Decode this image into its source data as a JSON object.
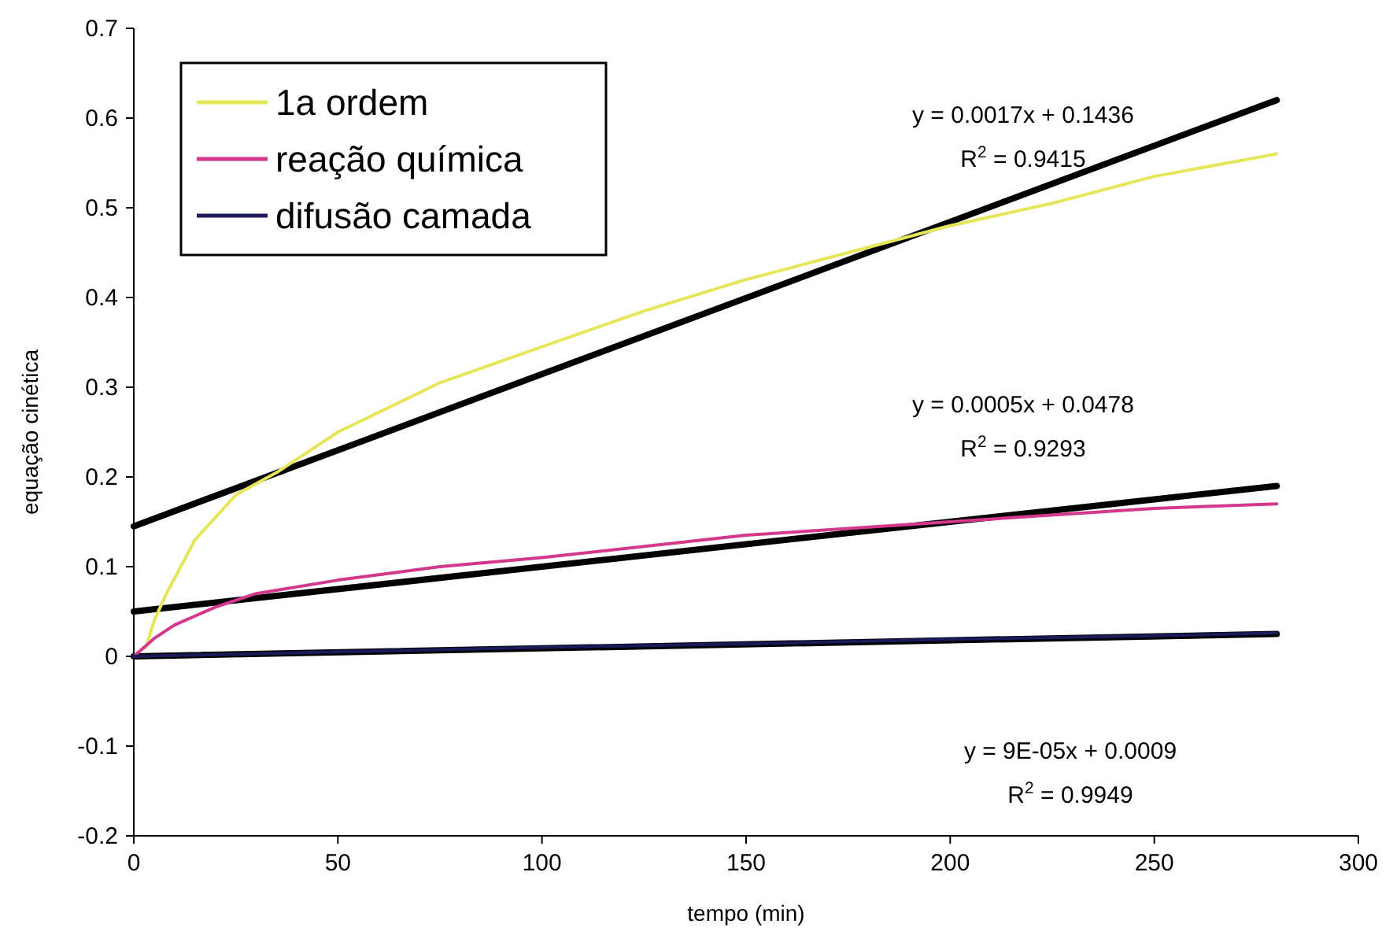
{
  "chart_data": {
    "type": "line",
    "xlabel": "tempo (min)",
    "ylabel": "equação cinética",
    "xlim": [
      0,
      300
    ],
    "ylim": [
      -0.2,
      0.7
    ],
    "xticks": [
      0,
      50,
      100,
      150,
      200,
      250,
      300
    ],
    "yticks": [
      -0.2,
      -0.1,
      0,
      0.1,
      0.2,
      0.3,
      0.4,
      0.5,
      0.6,
      0.7
    ],
    "grid": false,
    "legend": "top left",
    "marker": "none",
    "line_style": "solid",
    "series": [
      {
        "color": "#000000",
        "x": [
          0,
          280
        ],
        "values": [
          0.145,
          0.62
        ]
      },
      {
        "color": "#000000",
        "x": [
          0,
          280
        ],
        "values": [
          0.05,
          0.19
        ]
      },
      {
        "color": "#000000",
        "x": [
          0,
          280
        ],
        "values": [
          0,
          0.025
        ]
      },
      {
        "name": "1a ordem",
        "color": "#e6e65a",
        "x": [
          3,
          5,
          8,
          15,
          25,
          35,
          50,
          75,
          100,
          125,
          150,
          175,
          200,
          225,
          250,
          280
        ],
        "values": [
          0.01,
          0.04,
          0.07,
          0.13,
          0.18,
          0.205,
          0.25,
          0.305,
          0.345,
          0.385,
          0.42,
          0.45,
          0.48,
          0.505,
          0.535,
          0.56
        ]
      },
      {
        "name": "reação química",
        "color": "#d4388c",
        "x": [
          0,
          5,
          10,
          20,
          30,
          50,
          75,
          100,
          150,
          200,
          250,
          280
        ],
        "values": [
          0,
          0.02,
          0.035,
          0.055,
          0.07,
          0.085,
          0.1,
          0.11,
          0.135,
          0.15,
          0.165,
          0.17
        ]
      },
      {
        "name": "difusão camada",
        "color": "#1a1a5a",
        "x": [
          0,
          50,
          100,
          150,
          200,
          250,
          280
        ],
        "values": [
          0,
          0.005,
          0.01,
          0.014,
          0.019,
          0.023,
          0.026
        ]
      }
    ],
    "annotations": [
      "y = 0.0017x + 0.1436",
      "R$^{2}$ = 0.9415",
      "y = 0.0005x + 0.0478",
      "R$^{2}$ = 0.9293",
      "y = 9E-05x + 0.0009",
      "R$^{2}$ = 0.9949"
    ]
  }
}
